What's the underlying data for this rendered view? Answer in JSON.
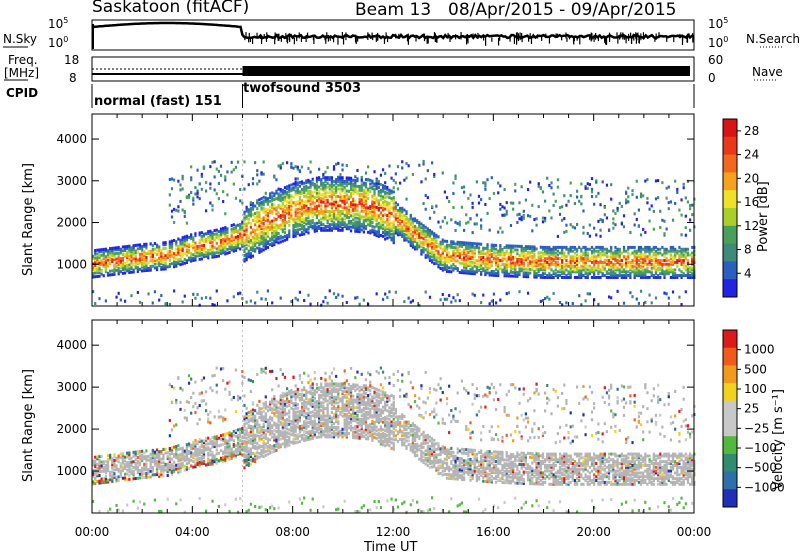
{
  "header": {
    "station": "Saskatoon (fitACF)",
    "beam": "Beam 13",
    "date_range": "08/Apr/2015 - 09/Apr/2015"
  },
  "strip_labels": {
    "nsky": "N.Sky",
    "nsearch": "N.Search",
    "freq": "Freq.",
    "freq_unit": "[MHz]",
    "nave": "Nave",
    "cpid": "CPID"
  },
  "strip_ticks": {
    "nsky_left": [
      "10^5",
      "10^0"
    ],
    "nsky_right": [
      "10^5",
      "10^0"
    ],
    "freq_left": [
      "18",
      "8"
    ],
    "nave_right": [
      "60",
      "0"
    ]
  },
  "cpid_modes": [
    {
      "label": "normal (fast) 151",
      "start_hour": 0,
      "end_hour": 6
    },
    {
      "label": "twofsound 3503",
      "start_hour": 6,
      "end_hour": 24
    }
  ],
  "colors": {
    "power_scale": [
      "#2323e6",
      "#2a5fc0",
      "#3f8a7a",
      "#4aa05a",
      "#a8cf2a",
      "#f0e02a",
      "#f6a21f",
      "#f2681c",
      "#e83a1a",
      "#d81414"
    ],
    "velocity_scale": [
      "#1f2fb8",
      "#2d6fa6",
      "#2f8c70",
      "#52b840",
      "#c8c8c8",
      "#c8c8c8",
      "#f2d21f",
      "#f29a1c",
      "#f05a1c",
      "#dd1a1a"
    ],
    "ground_scatter": "#b4b4b4"
  },
  "chart_data": [
    {
      "type": "heatmap",
      "panel": "power",
      "title": "",
      "xlabel": "",
      "ylabel": "Slant Range [km]",
      "x_ticks": [
        "00:00",
        "04:00",
        "08:00",
        "12:00",
        "16:00",
        "20:00",
        "00:00"
      ],
      "xlim_hours": [
        0,
        24
      ],
      "ylim": [
        0,
        4600
      ],
      "y_ticks": [
        1000,
        2000,
        3000,
        4000
      ],
      "colorbar_label": "Power [dB]",
      "colorbar_ticks": [
        "4",
        "8",
        "12",
        "16",
        "20",
        "24",
        "28"
      ],
      "colorbar_range": [
        0,
        30
      ],
      "scatter_bands": [
        {
          "x_hours": [
            0,
            2,
            3,
            4,
            5,
            6,
            7,
            8,
            9,
            10,
            11,
            12,
            13,
            14,
            16,
            18,
            20,
            22,
            24
          ],
          "range_km": [
            1050,
            1200,
            1250,
            1450,
            1550,
            1750,
            2100,
            2350,
            2500,
            2500,
            2450,
            2200,
            1700,
            1250,
            1150,
            1100,
            1100,
            1100,
            1100
          ],
          "peak_power_db": 26
        }
      ]
    },
    {
      "type": "heatmap",
      "panel": "velocity",
      "title": "",
      "xlabel": "Time UT",
      "ylabel": "Slant Range [km]",
      "x_ticks": [
        "00:00",
        "04:00",
        "08:00",
        "12:00",
        "16:00",
        "20:00",
        "00:00"
      ],
      "xlim_hours": [
        0,
        24
      ],
      "ylim": [
        0,
        4600
      ],
      "y_ticks": [
        1000,
        2000,
        3000,
        4000
      ],
      "colorbar_label": "Velocity [m s⁻¹]",
      "colorbar_ticks": [
        "1000",
        "500",
        "100",
        "25",
        "−25",
        "−100",
        "−500",
        "−1000"
      ],
      "colorbar_range": [
        -1000,
        1000
      ]
    }
  ]
}
